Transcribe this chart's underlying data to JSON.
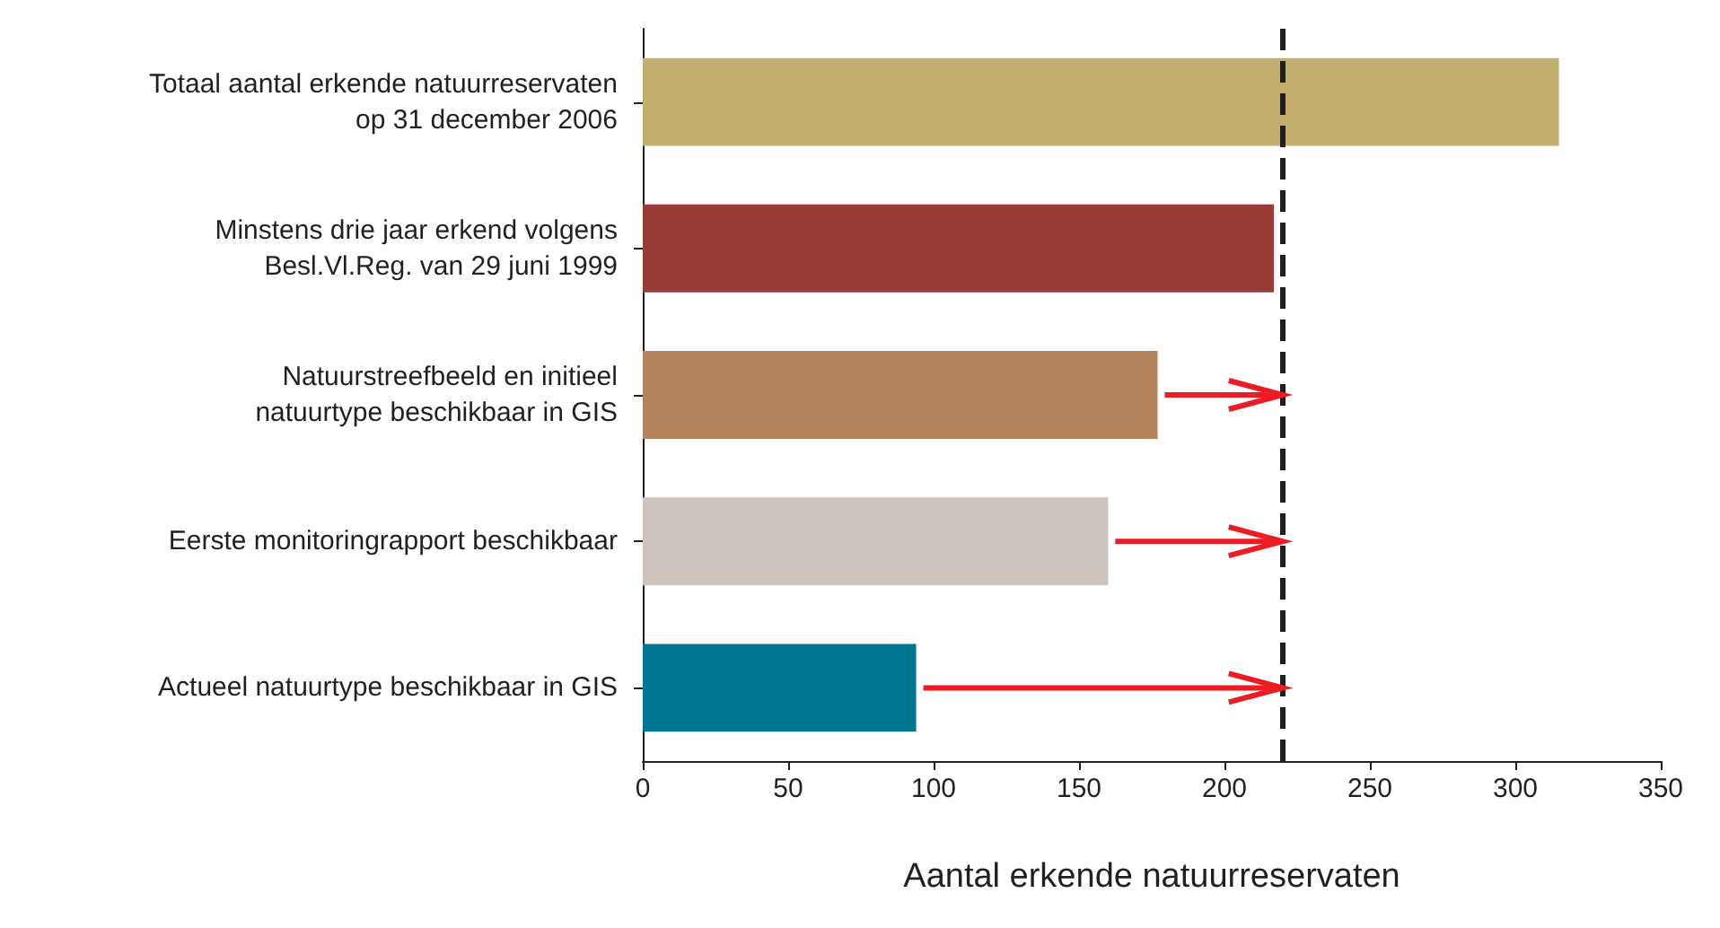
{
  "chart_data": {
    "type": "bar",
    "orientation": "horizontal",
    "xlabel": "Aantal erkende natuurreservaten",
    "categories": [
      "Totaal aantal erkende natuurreservaten\nop 31 december 2006",
      "Minstens drie jaar erkend volgens\nBesl.Vl.Reg. van 29 juni 1999",
      "Natuurstreefbeeld en initieel\nnatuurtype beschikbaar in GIS",
      "Eerste monitoringrapport beschikbaar",
      "Actueel natuurtype beschikbaar in GIS"
    ],
    "values": [
      315,
      217,
      177,
      160,
      94
    ],
    "colors": [
      "#c2af6f",
      "#983b35",
      "#b3835c",
      "#cdc4bd",
      "#007692"
    ],
    "xlim": [
      0,
      350
    ],
    "xticks": [
      0,
      50,
      100,
      150,
      200,
      250,
      300,
      350
    ],
    "ref_lines": [
      {
        "axis": "x",
        "value": 220,
        "color": "#231f20",
        "line_style": "dashed"
      }
    ],
    "grid": false
  }
}
